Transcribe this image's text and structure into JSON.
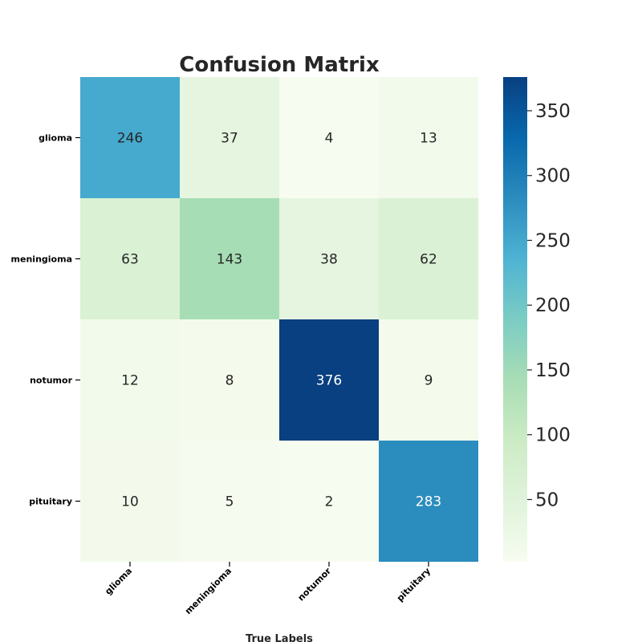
{
  "chart_data": {
    "type": "heatmap",
    "title": "Confusion Matrix",
    "xlabel": "True Labels",
    "ylabel": "",
    "x_categories": [
      "glioma",
      "meningioma",
      "notumor",
      "pituitary"
    ],
    "y_categories": [
      "glioma",
      "meningioma",
      "notumor",
      "pituitary"
    ],
    "matrix": [
      [
        246,
        37,
        4,
        13
      ],
      [
        63,
        143,
        38,
        62
      ],
      [
        12,
        8,
        376,
        9
      ],
      [
        10,
        5,
        2,
        283
      ]
    ],
    "colormap": "GnBu",
    "colorbar": {
      "range": [
        2,
        376
      ],
      "ticks": [
        50,
        100,
        150,
        200,
        250,
        300,
        350
      ]
    },
    "grid": false
  }
}
